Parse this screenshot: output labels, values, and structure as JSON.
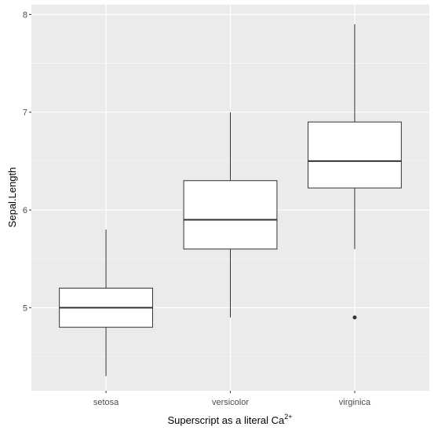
{
  "chart_data": {
    "type": "boxplot",
    "title": "",
    "xlabel": "Superscript as a literal  Ca",
    "xlabel_superscript": "2+",
    "ylabel": "Sepal.Length",
    "ylim": [
      4.15,
      8.1
    ],
    "yticks": [
      5,
      6,
      7,
      8
    ],
    "categories": [
      "setosa",
      "versicolor",
      "virginica"
    ],
    "boxes": [
      {
        "category": "setosa",
        "whisker_low": 4.3,
        "q1": 4.8,
        "median": 5.0,
        "q3": 5.2,
        "whisker_high": 5.8,
        "outliers": []
      },
      {
        "category": "versicolor",
        "whisker_low": 4.9,
        "q1": 5.6,
        "median": 5.9,
        "q3": 6.3,
        "whisker_high": 7.0,
        "outliers": []
      },
      {
        "category": "virginica",
        "whisker_low": 5.6,
        "q1": 6.225,
        "median": 6.5,
        "q3": 6.9,
        "whisker_high": 7.9,
        "outliers": [
          4.9
        ]
      }
    ],
    "grid": true,
    "legend": "none",
    "colors": {
      "panel": "#ebebeb",
      "grid_major": "#ffffff",
      "box_fill": "#ffffff",
      "stroke": "#333333"
    }
  }
}
